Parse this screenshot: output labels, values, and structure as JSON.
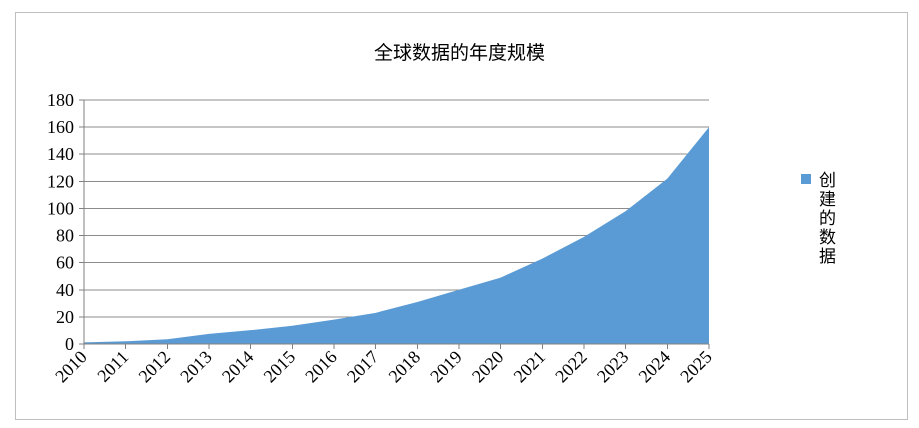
{
  "chart_data": {
    "type": "area",
    "title": "全球数据的年度规模",
    "xlabel": "",
    "ylabel": "",
    "categories": [
      "2010",
      "2011",
      "2012",
      "2013",
      "2014",
      "2015",
      "2016",
      "2017",
      "2018",
      "2019",
      "2020",
      "2021",
      "2022",
      "2023",
      "2024",
      "2025"
    ],
    "series": [
      {
        "name": "创建的数据",
        "values": [
          1.2,
          2,
          3.5,
          7.5,
          10.2,
          13.5,
          18,
          23,
          31,
          40,
          49,
          63,
          79,
          98,
          122,
          160
        ]
      }
    ],
    "yticks": [
      "0",
      "20",
      "40",
      "60",
      "80",
      "100",
      "120",
      "140",
      "160",
      "180"
    ],
    "ylim": [
      0,
      180
    ],
    "grid": true,
    "legend": "right",
    "series_color": "#5b9bd5"
  }
}
